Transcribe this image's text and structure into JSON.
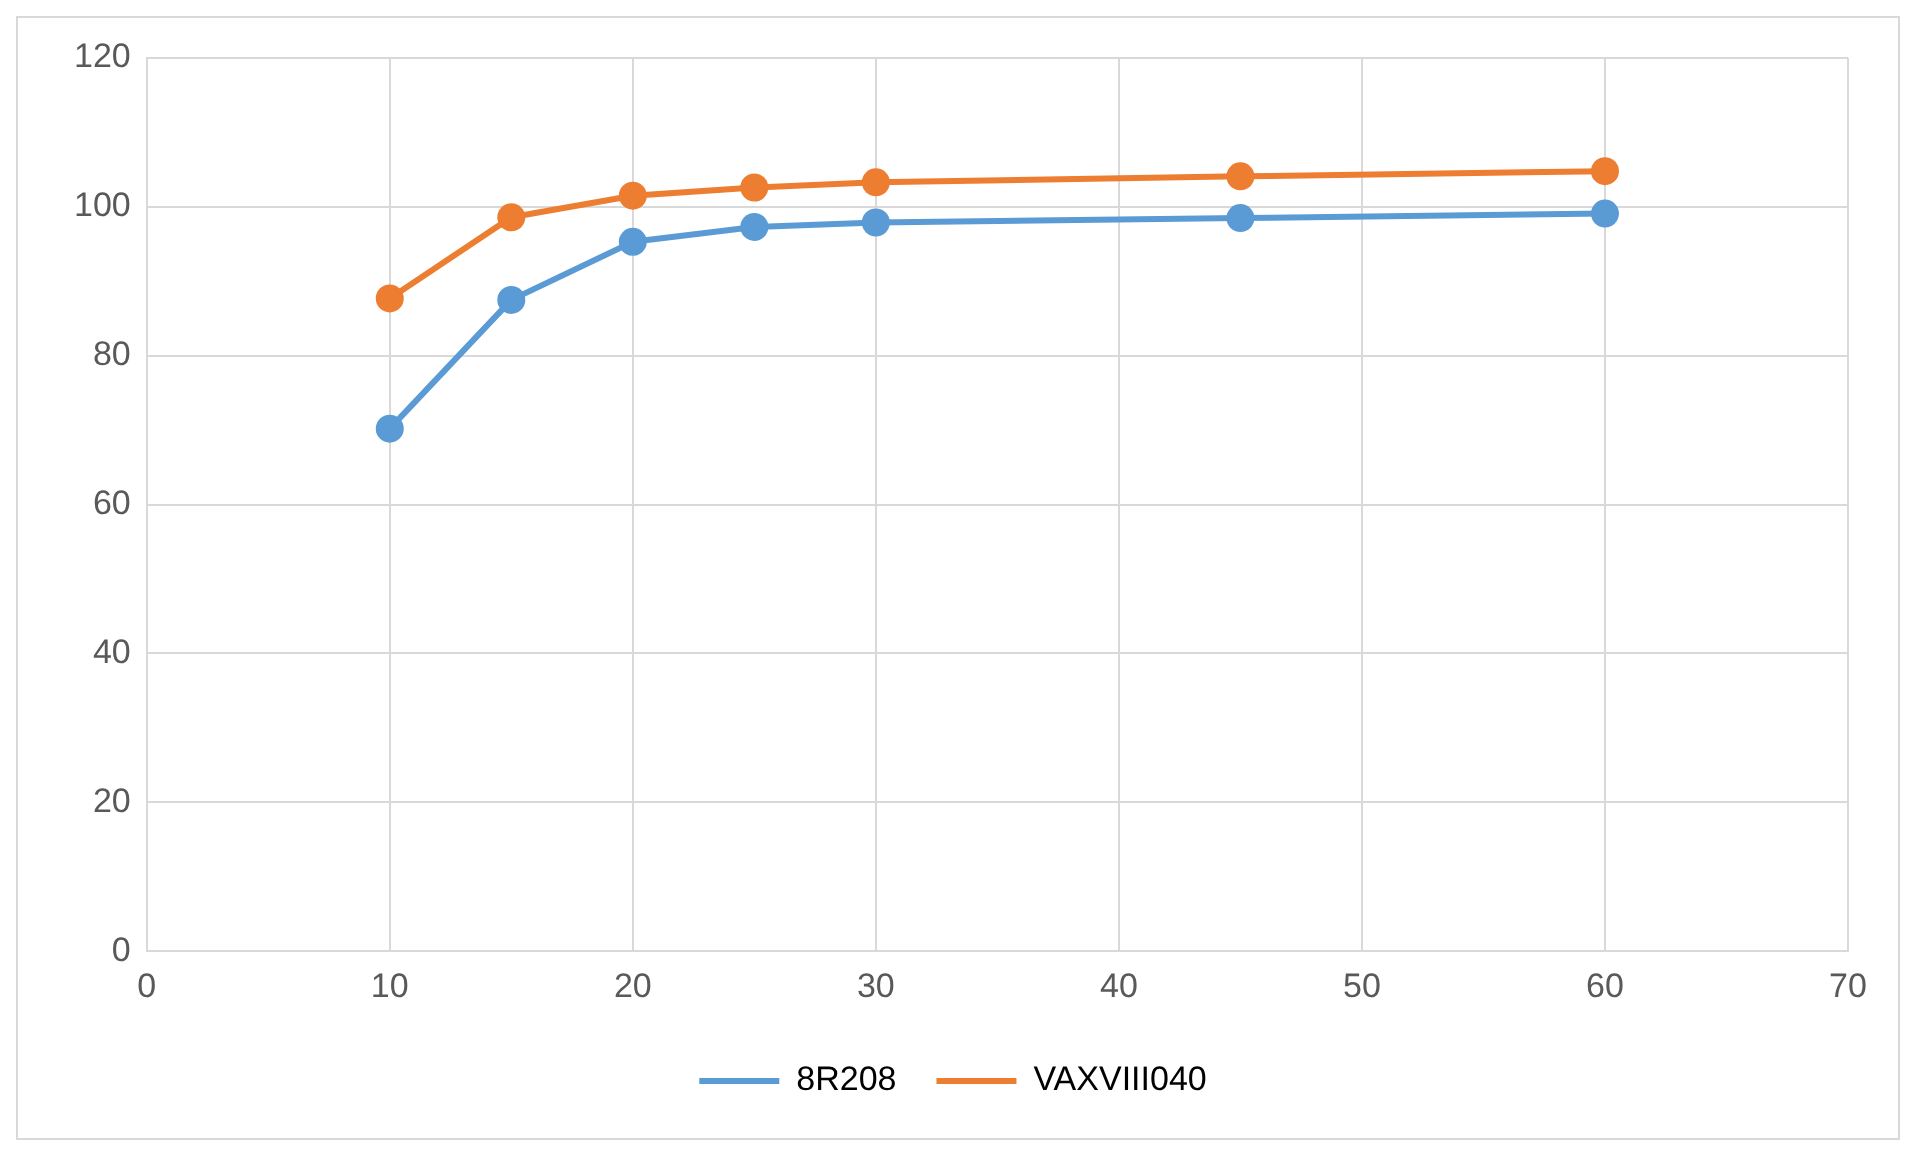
{
  "chart_data": {
    "type": "line",
    "x": [
      10,
      15,
      20,
      25,
      30,
      45,
      60
    ],
    "series": [
      {
        "name": "8R208",
        "color": "#5b9bd5",
        "values": [
          70.2,
          87.5,
          95.3,
          97.3,
          97.9,
          98.5,
          99.1
        ]
      },
      {
        "name": "VAXVIII040",
        "color": "#ed7d31",
        "values": [
          87.7,
          98.6,
          101.5,
          102.6,
          103.3,
          104.1,
          104.8
        ]
      }
    ],
    "xlim": [
      0,
      70
    ],
    "xticks": [
      0,
      10,
      20,
      30,
      40,
      50,
      60,
      70
    ],
    "ylim": [
      0,
      120
    ],
    "yticks": [
      0,
      20,
      40,
      60,
      80,
      100,
      120
    ],
    "grid": true,
    "legend": "bottom",
    "marker": "circle",
    "line_style": "solid"
  }
}
